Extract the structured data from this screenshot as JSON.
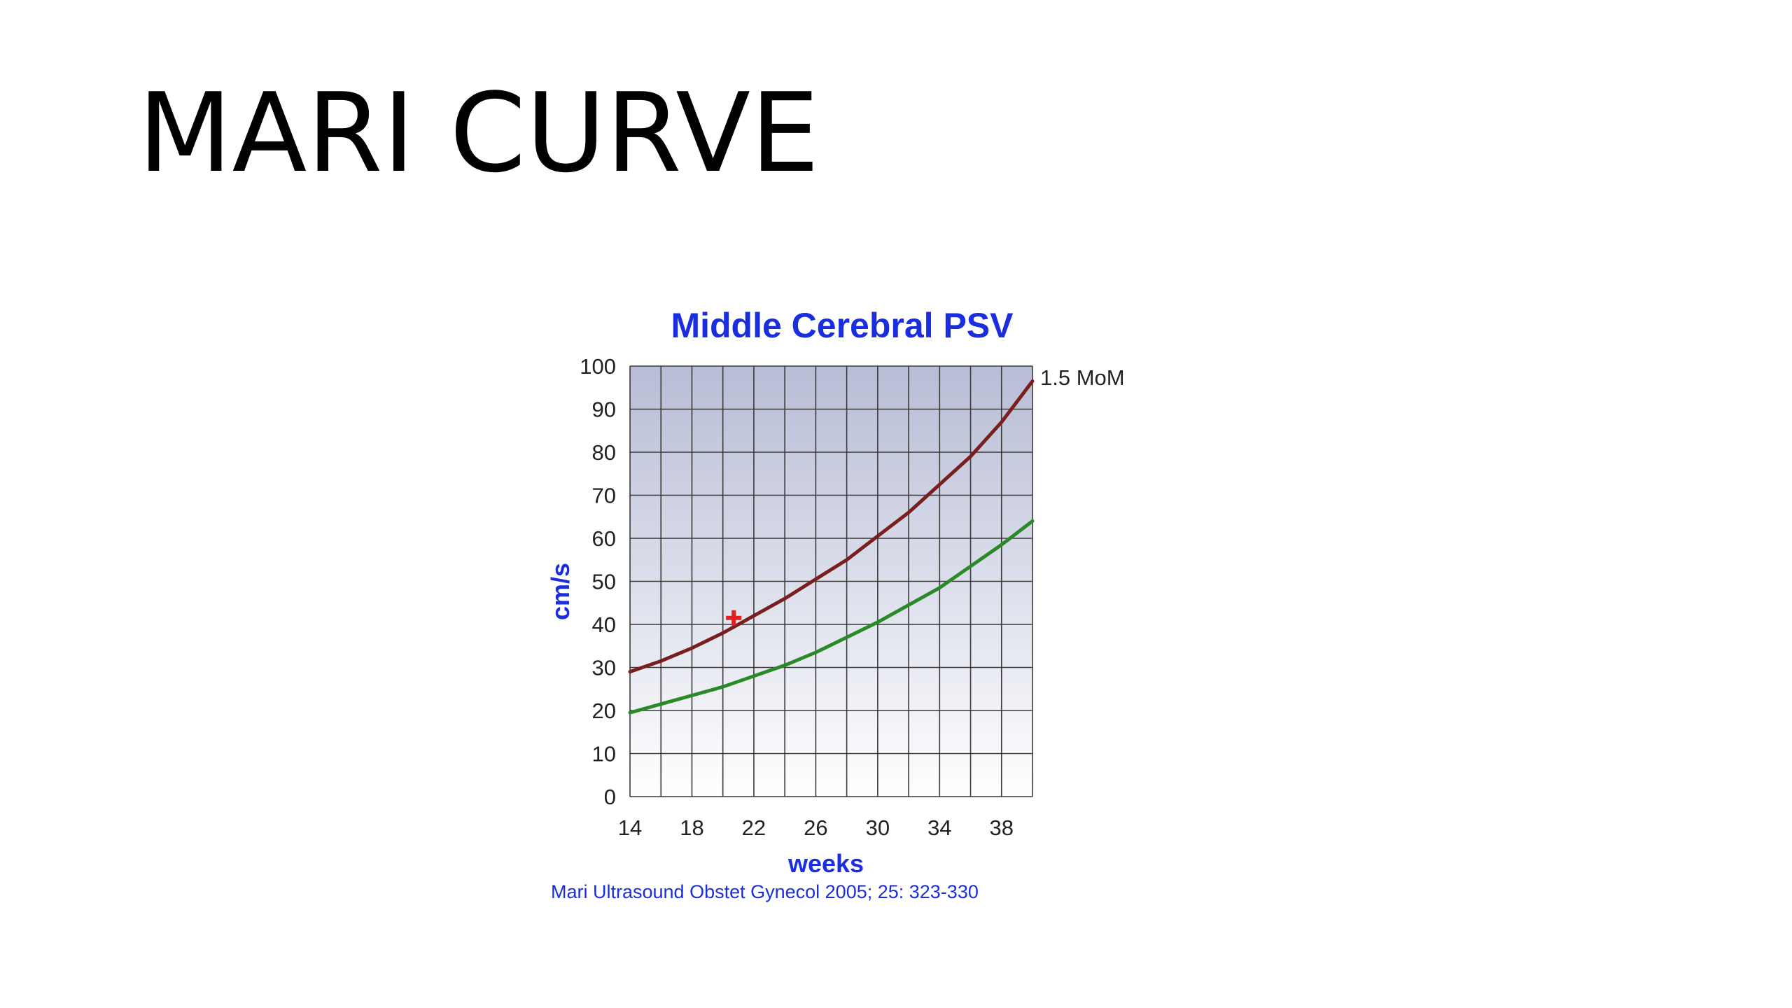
{
  "slide": {
    "title": "MARI CURVE"
  },
  "chart_data": {
    "type": "line",
    "title": "Middle Cerebral PSV",
    "xlabel": "weeks",
    "ylabel": "cm/s",
    "xlim": [
      14,
      40
    ],
    "ylim": [
      0,
      100
    ],
    "x_ticks": [
      14,
      18,
      22,
      26,
      30,
      34,
      38
    ],
    "x_tick_labels": [
      "14",
      "18",
      "22",
      "26",
      "30",
      "34",
      "38"
    ],
    "y_ticks": [
      0,
      10,
      20,
      30,
      40,
      50,
      60,
      70,
      80,
      90,
      100
    ],
    "y_tick_labels": [
      "0",
      "10",
      "20",
      "30",
      "40",
      "50",
      "60",
      "70",
      "80",
      "90",
      "100"
    ],
    "grid": true,
    "x_grid_step": 2,
    "source": "Mari Ultrasound Obstet Gynecol 2005; 25: 323-330",
    "series": [
      {
        "name": "1.5 MoM",
        "color": "#7a1f1f",
        "x": [
          14,
          16,
          18,
          20,
          22,
          24,
          26,
          28,
          30,
          32,
          34,
          36,
          38,
          40
        ],
        "values": [
          29,
          31.5,
          34.5,
          38,
          42,
          46,
          50.5,
          55,
          60.5,
          66,
          72.5,
          79,
          87,
          96.5
        ]
      },
      {
        "color": "#2a8a2a",
        "x": [
          14,
          16,
          18,
          20,
          22,
          24,
          26,
          28,
          30,
          32,
          34,
          36,
          38,
          40
        ],
        "values": [
          19.5,
          21.5,
          23.5,
          25.5,
          28,
          30.5,
          33.5,
          37,
          40.5,
          44.5,
          48.5,
          53.5,
          58.5,
          64
        ]
      }
    ],
    "points": [
      {
        "x": 20.7,
        "y": 41.5,
        "marker": "cross",
        "color": "#e02020"
      }
    ],
    "colors": {
      "title": "#1a2ee0",
      "axis_label": "#1a2ee0",
      "source": "#1a2ee0",
      "tick_label": "#222222",
      "grid": "#3a3a3a",
      "plot_bg_top": "#b8bdd6",
      "plot_bg_bottom": "#ffffff"
    }
  }
}
